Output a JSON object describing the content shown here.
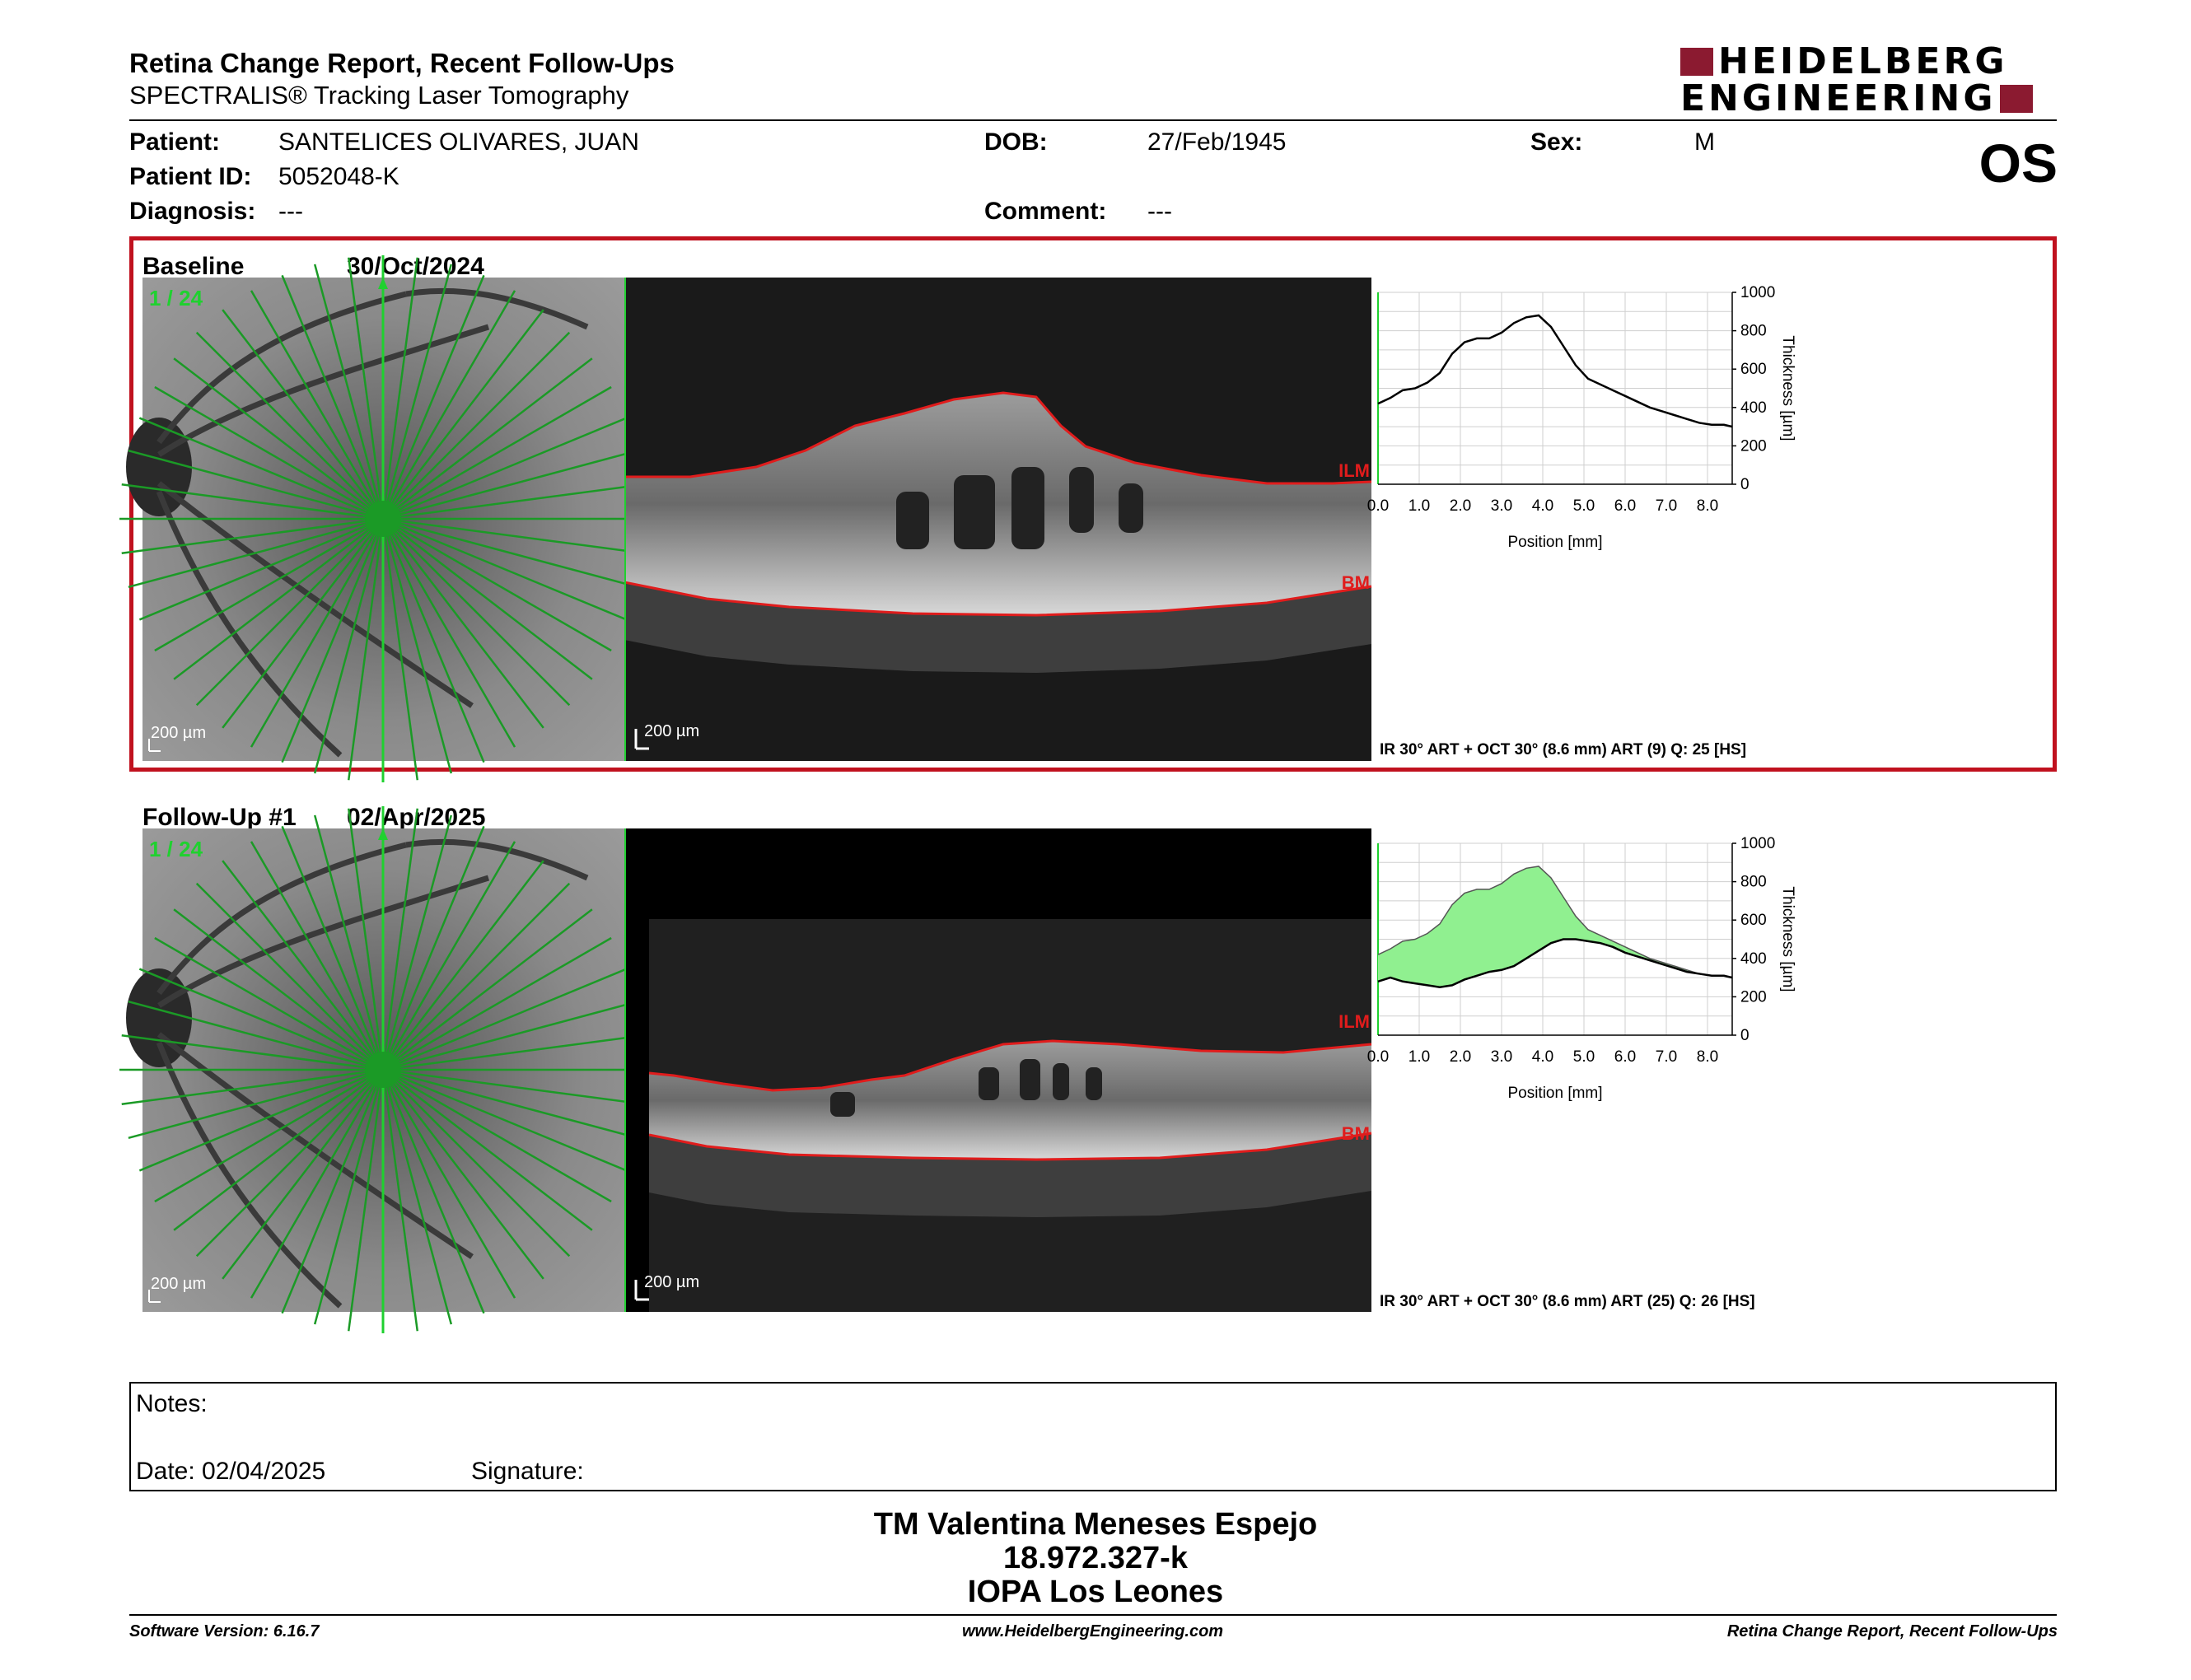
{
  "header": {
    "title": "Retina Change Report, Recent Follow-Ups",
    "subtitle": "SPECTRALIS® Tracking Laser Tomography",
    "logo_line1": "HEIDELBERG",
    "logo_line2": "ENGINEERING",
    "eye": "OS"
  },
  "patient": {
    "patient_label": "Patient:",
    "patient_value": "SANTELICES OLIVARES, JUAN",
    "dob_label": "DOB:",
    "dob_value": "27/Feb/1945",
    "sex_label": "Sex:",
    "sex_value": "M",
    "id_label": "Patient ID:",
    "id_value": "5052048-K",
    "diagnosis_label": "Diagnosis:",
    "diagnosis_value": "---",
    "comment_label": "Comment:",
    "comment_value": "---"
  },
  "baseline": {
    "label": "Baseline",
    "date": "30/Oct/2024",
    "scan_index": "1 / 24",
    "fundus_scale": "200 µm",
    "oct_scale": "200 µm",
    "ilm_label": "ILM",
    "bm_label": "BM",
    "scan_info": "IR 30° ART + OCT 30° (8.6 mm) ART (9) Q: 25 [HS]"
  },
  "followup": {
    "label": "Follow-Up #1",
    "date": "02/Apr/2025",
    "scan_index": "1 / 24",
    "fundus_scale": "200 µm",
    "oct_scale": "200 µm",
    "ilm_label": "ILM",
    "bm_label": "BM",
    "scan_info": "IR 30° ART + OCT 30° (8.6 mm) ART (25) Q: 26 [HS]"
  },
  "chart_data": [
    {
      "type": "line",
      "xlabel": "Position [mm]",
      "ylabel": "Thickness [µm]",
      "xlim": [
        0,
        8.6
      ],
      "ylim": [
        0,
        1000
      ],
      "xticks": [
        "0.0",
        "1.0",
        "2.0",
        "3.0",
        "4.0",
        "5.0",
        "6.0",
        "7.0",
        "8.0"
      ],
      "yticks": [
        "0",
        "200",
        "400",
        "600",
        "800",
        "1000"
      ],
      "grid": true,
      "series": [
        {
          "x": [
            0.0,
            0.3,
            0.6,
            0.9,
            1.2,
            1.5,
            1.8,
            2.1,
            2.4,
            2.7,
            3.0,
            3.3,
            3.6,
            3.9,
            4.2,
            4.5,
            4.8,
            5.1,
            5.4,
            5.7,
            6.0,
            6.3,
            6.6,
            6.9,
            7.2,
            7.5,
            7.8,
            8.1,
            8.4,
            8.6
          ],
          "y": [
            420,
            450,
            490,
            500,
            530,
            580,
            680,
            740,
            760,
            760,
            790,
            840,
            870,
            880,
            820,
            720,
            620,
            550,
            520,
            490,
            460,
            430,
            400,
            380,
            360,
            340,
            320,
            310,
            310,
            300
          ]
        }
      ]
    },
    {
      "type": "area",
      "xlabel": "Position [mm]",
      "ylabel": "Thickness [µm]",
      "xlim": [
        0,
        8.6
      ],
      "ylim": [
        0,
        1000
      ],
      "xticks": [
        "0.0",
        "1.0",
        "2.0",
        "3.0",
        "4.0",
        "5.0",
        "6.0",
        "7.0",
        "8.0"
      ],
      "yticks": [
        "0",
        "200",
        "400",
        "600",
        "800",
        "1000"
      ],
      "grid": true,
      "series": [
        {
          "x": [
            0.0,
            0.3,
            0.6,
            0.9,
            1.2,
            1.5,
            1.8,
            2.1,
            2.4,
            2.7,
            3.0,
            3.3,
            3.6,
            3.9,
            4.2,
            4.5,
            4.8,
            5.1,
            5.4,
            5.7,
            6.0,
            6.3,
            6.6,
            6.9,
            7.2,
            7.5,
            7.8,
            8.1,
            8.4,
            8.6
          ],
          "y": [
            420,
            450,
            490,
            500,
            530,
            580,
            680,
            740,
            760,
            760,
            790,
            840,
            870,
            880,
            820,
            720,
            620,
            550,
            520,
            490,
            460,
            430,
            400,
            380,
            360,
            340,
            320,
            310,
            310,
            300
          ]
        },
        {
          "x": [
            0.0,
            0.3,
            0.6,
            0.9,
            1.2,
            1.5,
            1.8,
            2.1,
            2.4,
            2.7,
            3.0,
            3.3,
            3.6,
            3.9,
            4.2,
            4.5,
            4.8,
            5.1,
            5.4,
            5.7,
            6.0,
            6.3,
            6.6,
            6.9,
            7.2,
            7.5,
            7.8,
            8.1,
            8.4,
            8.6
          ],
          "y": [
            280,
            300,
            280,
            270,
            260,
            250,
            260,
            290,
            310,
            330,
            340,
            360,
            400,
            440,
            480,
            500,
            500,
            490,
            480,
            460,
            430,
            410,
            390,
            370,
            350,
            330,
            320,
            310,
            310,
            300
          ]
        }
      ],
      "fill_color": "#90f090"
    }
  ],
  "notes": {
    "notes_label": "Notes:",
    "date_label": "Date: 02/04/2025",
    "signature_label": "Signature:"
  },
  "signature_block": {
    "line1": "TM Valentina Meneses Espejo",
    "line2": "18.972.327-k",
    "line3": "IOPA Los Leones"
  },
  "footer": {
    "software": "Software Version: 6.16.7",
    "website": "www.HeidelbergEngineering.com",
    "report": "Retina Change Report, Recent Follow-Ups"
  },
  "colors": {
    "scan_green": "#1fd12f",
    "seg_red": "#e01c1c",
    "frame_red": "#c0111e",
    "logo_red": "#8b1a30"
  }
}
